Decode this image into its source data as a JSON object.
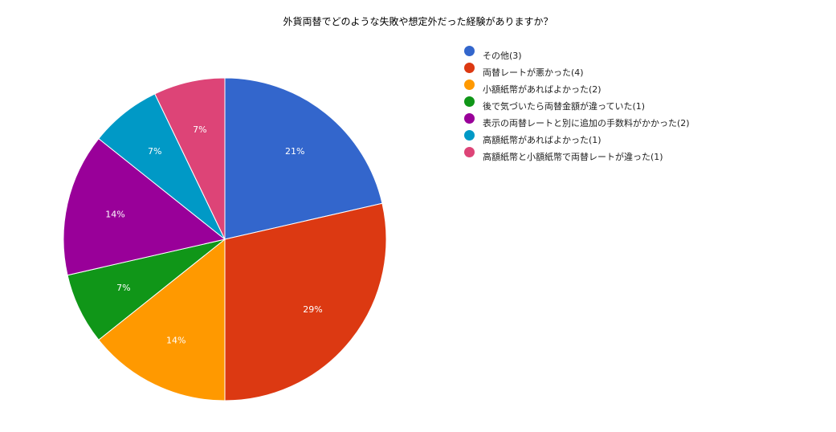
{
  "chart_data": {
    "type": "pie",
    "title": "外貨両替でどのような失敗や想定外だった経験がありますか？",
    "legend_position": "right",
    "slices": [
      {
        "label": "その他(3)",
        "value": 3,
        "percent_label": "21%",
        "color": "#3366cc"
      },
      {
        "label": "両替レートが悪かった(4)",
        "value": 4,
        "percent_label": "29%",
        "color": "#dc3912"
      },
      {
        "label": "小額紙幣があればよかった(2)",
        "value": 2,
        "percent_label": "14%",
        "color": "#ff9900"
      },
      {
        "label": "後で気づいたら両替金額が違っていた(1)",
        "value": 1,
        "percent_label": "7%",
        "color": "#109618"
      },
      {
        "label": "表示の両替レートと別に追加の手数料がかかった(2)",
        "value": 2,
        "percent_label": "14%",
        "color": "#990099"
      },
      {
        "label": "高額紙幣があればよかった(1)",
        "value": 1,
        "percent_label": "7%",
        "color": "#0099c6"
      },
      {
        "label": "高額紙幣と小額紙幣で両替レートが違った(1)",
        "value": 1,
        "percent_label": "7%",
        "color": "#dd4477"
      }
    ]
  }
}
